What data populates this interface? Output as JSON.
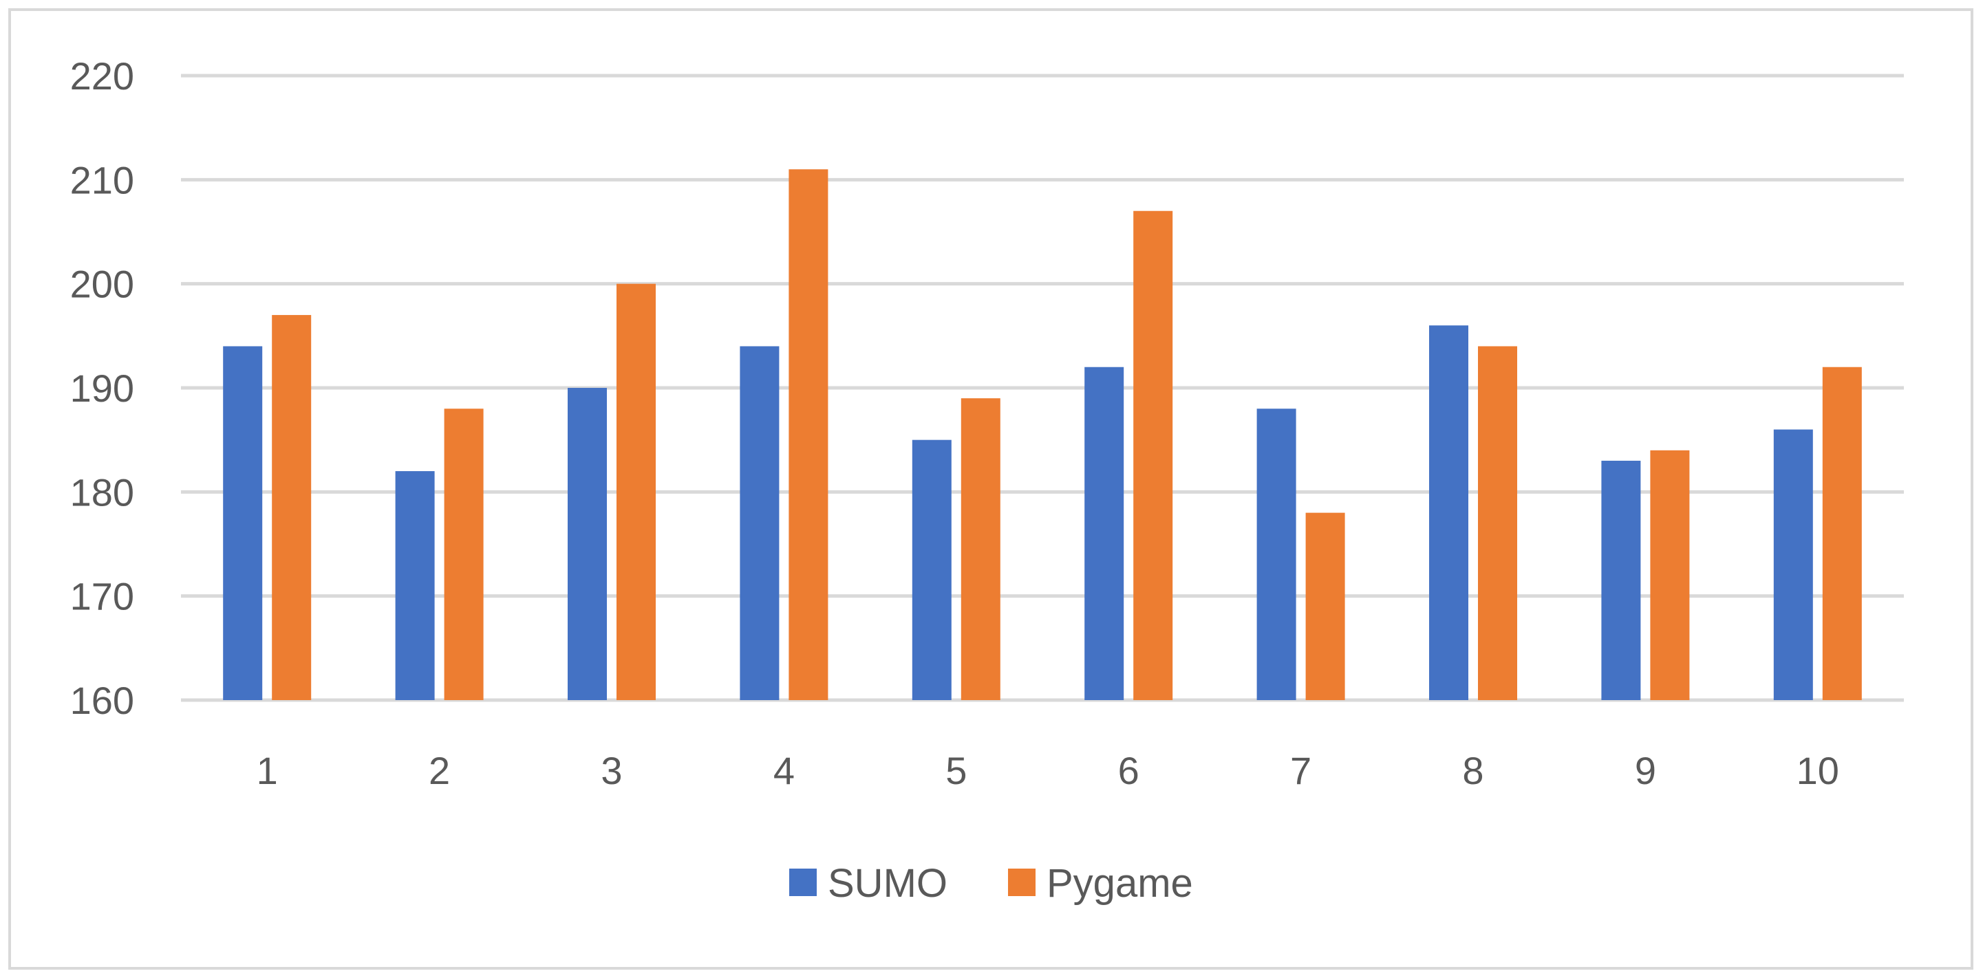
{
  "chart_data": {
    "type": "bar",
    "title": "",
    "xlabel": "",
    "ylabel": "",
    "categories": [
      "1",
      "2",
      "3",
      "4",
      "5",
      "6",
      "7",
      "8",
      "9",
      "10"
    ],
    "series": [
      {
        "name": "SUMO",
        "color": "#4472c4",
        "values": [
          194,
          182,
          190,
          194,
          185,
          192,
          188,
          196,
          183,
          186
        ]
      },
      {
        "name": "Pygame",
        "color": "#ed7d31",
        "values": [
          197,
          188,
          200,
          211,
          189,
          207,
          178,
          194,
          184,
          192
        ]
      }
    ],
    "ylim": [
      160,
      220
    ],
    "yticks": [
      "160",
      "170",
      "180",
      "190",
      "200",
      "210",
      "220"
    ],
    "grid": true,
    "legend_position": "bottom"
  }
}
